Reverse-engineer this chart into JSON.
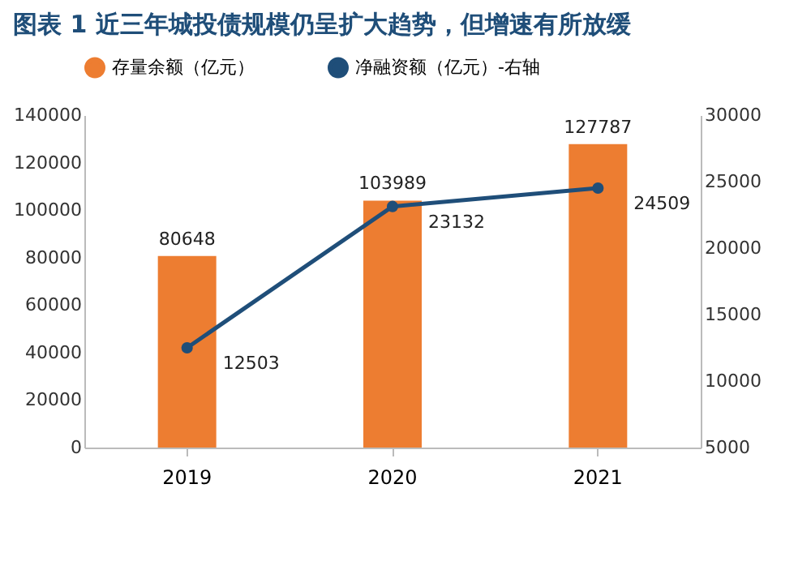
{
  "chart_data": {
    "type": "bar",
    "title": "图表 1   近三年城投债规模仍呈扩大趋势，但增速有所放缓",
    "categories": [
      "2019",
      "2020",
      "2021"
    ],
    "series": [
      {
        "name": "存量余额（亿元）",
        "color": "#ed7d31",
        "values": [
          80648,
          103989,
          127787
        ]
      },
      {
        "name": "净融资额（亿元）-右轴",
        "type": "line",
        "axis": "y2",
        "color": "#1f4e79",
        "values": [
          12503,
          23132,
          24509
        ]
      }
    ],
    "ylim": [
      0,
      140000
    ],
    "yticks": [
      0,
      20000,
      40000,
      60000,
      80000,
      100000,
      120000,
      140000
    ],
    "y2lim": [
      5000,
      30000
    ],
    "y2ticks": [
      5000,
      10000,
      15000,
      20000,
      25000,
      30000
    ],
    "legend": "top",
    "data_labels": true,
    "marker": "circle"
  }
}
